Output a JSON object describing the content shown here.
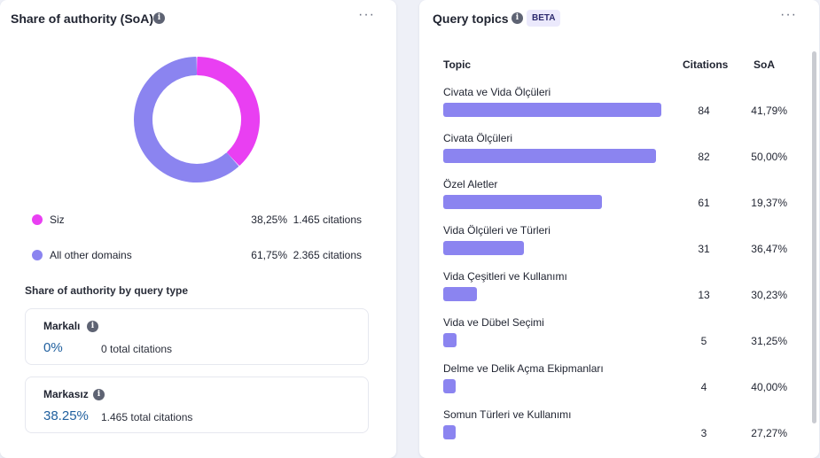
{
  "soa": {
    "title": "Share of authority (SoA)",
    "donut": [
      {
        "label": "Siz",
        "fraction": 0.3825,
        "color": "#e93ff2"
      },
      {
        "label": "All other domains",
        "fraction": 0.6175,
        "color": "#8b84f0"
      }
    ],
    "legend": [
      {
        "label": "Siz",
        "pct": "38,25%",
        "citations": "1.465 citations"
      },
      {
        "label": "All other domains",
        "pct": "61,75%",
        "citations": "2.365 citations"
      }
    ],
    "by_type_title": "Share of authority by query type",
    "types": [
      {
        "name": "Markalı",
        "pct": "0%",
        "total": "0 total citations"
      },
      {
        "name": "Markasız",
        "pct": "38.25%",
        "total": "1.465 total citations"
      }
    ]
  },
  "query_topics": {
    "title": "Query topics",
    "badge": "BETA",
    "columns": {
      "topic": "Topic",
      "citations": "Citations",
      "soa": "SoA"
    },
    "max_citations": 84,
    "rows": [
      {
        "topic": "Civata ve Vida Ölçüleri",
        "citations": "84",
        "soa": "41,79%",
        "value": 84
      },
      {
        "topic": "Civata Ölçüleri",
        "citations": "82",
        "soa": "50,00%",
        "value": 82
      },
      {
        "topic": "Özel Aletler",
        "citations": "61",
        "soa": "19,37%",
        "value": 61
      },
      {
        "topic": "Vida Ölçüleri ve Türleri",
        "citations": "31",
        "soa": "36,47%",
        "value": 31
      },
      {
        "topic": "Vida Çeşitleri ve Kullanımı",
        "citations": "13",
        "soa": "30,23%",
        "value": 13
      },
      {
        "topic": "Vida ve Dübel Seçimi",
        "citations": "5",
        "soa": "31,25%",
        "value": 5
      },
      {
        "topic": "Delme ve Delik Açma Ekipmanları",
        "citations": "4",
        "soa": "40,00%",
        "value": 4
      },
      {
        "topic": "Somun Türleri ve Kullanımı",
        "citations": "3",
        "soa": "27,27%",
        "value": 3
      }
    ]
  },
  "icons": {
    "info": "info-icon",
    "more": "more-horizontal-icon"
  }
}
